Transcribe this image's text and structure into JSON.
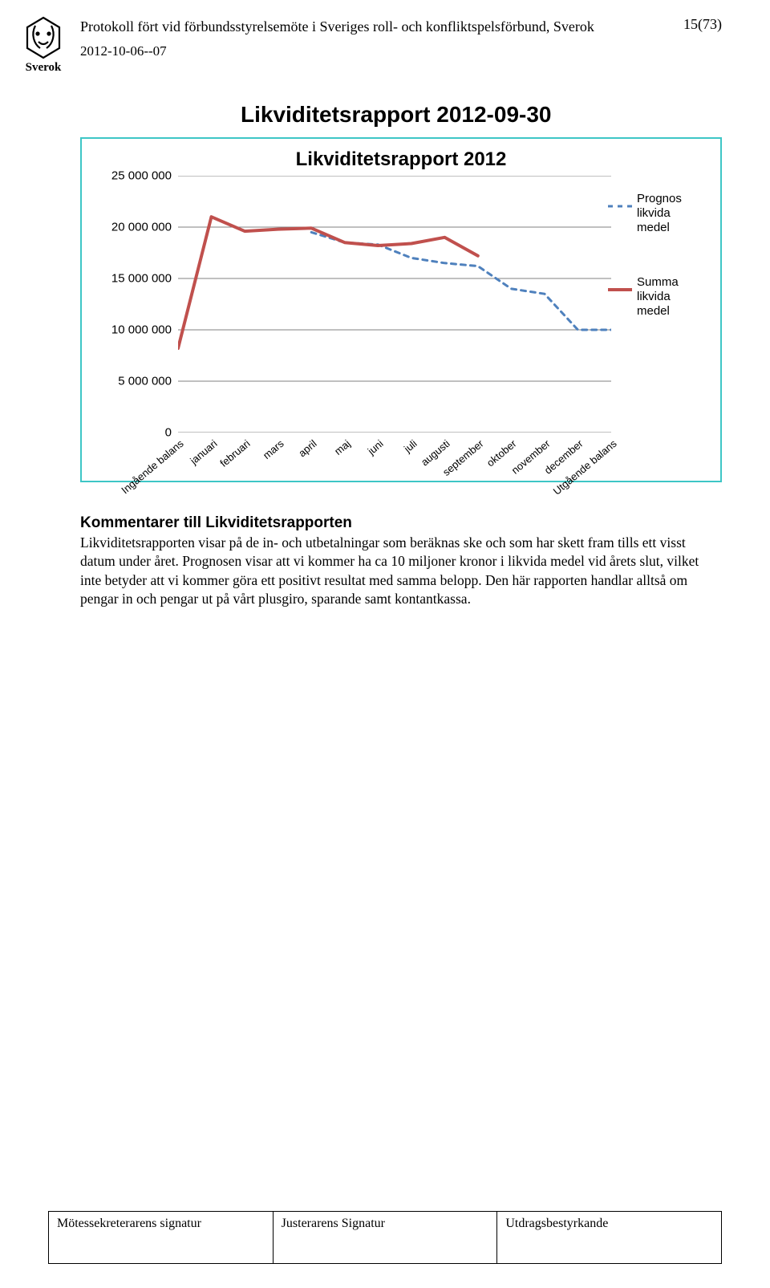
{
  "header": {
    "title": "Protokoll fört vid förbundsstyrelsemöte i Sveriges roll- och konfliktspelsförbund, Sverok",
    "page_number": "15(73)",
    "date": "2012-10-06--07",
    "logo_label": "Sverok"
  },
  "section_title": "Likviditetsrapport 2012-09-30",
  "chart": {
    "type": "line",
    "title": "Likviditetsrapport 2012",
    "title_fontsize": 24,
    "title_color": "#000000",
    "background_color": "#ffffff",
    "border_color": "#3ec6c6",
    "border_width": 2,
    "grid_color": "#808080",
    "axis_color": "#808080",
    "label_fontsize": 15,
    "xlabel_fontsize": 13,
    "xlabel_rotation": -40,
    "ylim": [
      0,
      25000000
    ],
    "ytick_step": 5000000,
    "y_ticks": [
      {
        "v": 0,
        "label": "0"
      },
      {
        "v": 5000000,
        "label": "5 000 000"
      },
      {
        "v": 10000000,
        "label": "10 000 000"
      },
      {
        "v": 15000000,
        "label": "15 000 000"
      },
      {
        "v": 20000000,
        "label": "20 000 000"
      },
      {
        "v": 25000000,
        "label": "25 000 000"
      }
    ],
    "categories": [
      "Ingående balans",
      "januari",
      "februari",
      "mars",
      "april",
      "maj",
      "juni",
      "juli",
      "augusti",
      "september",
      "oktober",
      "november",
      "december",
      "Utgående balans"
    ],
    "series": [
      {
        "name": "Prognos likvida medel",
        "legend_label": "Prognos likvida medel",
        "color": "#4f81bd",
        "line_width": 3,
        "dash": "6,6",
        "values": [
          null,
          null,
          null,
          null,
          19500000,
          18500000,
          18300000,
          17000000,
          16500000,
          16200000,
          14000000,
          13500000,
          10000000,
          10000000
        ]
      },
      {
        "name": "Summa likvida medel",
        "legend_label": "Summa likvida medel",
        "color": "#c0504d",
        "line_width": 4,
        "dash": "",
        "values": [
          8200000,
          21000000,
          19600000,
          19800000,
          19900000,
          18500000,
          18200000,
          18400000,
          19000000,
          17200000,
          null,
          null,
          null,
          null
        ]
      }
    ]
  },
  "commentary": {
    "title": "Kommentarer till Likviditetsrapporten",
    "body": "Likviditetsrapporten visar på de in- och utbetalningar som beräknas ske och som har skett fram tills ett visst datum under året. Prognosen visar att vi kommer ha ca 10 miljoner kronor i likvida medel vid årets slut, vilket inte betyder att vi kommer göra ett positivt resultat med samma belopp. Den här rapporten handlar alltså om pengar in och pengar ut på vårt plusgiro, sparande samt kontantkassa."
  },
  "footer": {
    "c1": "Mötessekreterarens signatur",
    "c2": "Justerarens Signatur",
    "c3": "Utdragsbestyrkande"
  }
}
